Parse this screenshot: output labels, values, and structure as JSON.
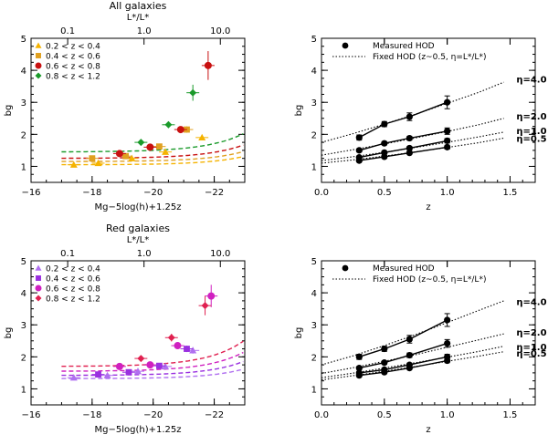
{
  "chart_data": [
    {
      "type": "scatter",
      "title": "All galaxies",
      "top_axis_label": "L*/L*",
      "top_ticks": [
        {
          "label": "0.1",
          "at": -17.2
        },
        {
          "label": "1.0",
          "at": -19.7
        },
        {
          "label": "10.0",
          "at": -22.2
        }
      ],
      "xlabel": "Mg−5log(h)+1.25z",
      "ylabel": "bg",
      "xlim": [
        -16,
        -23
      ],
      "ylim": [
        0.5,
        5
      ],
      "xticks": [
        -16,
        -18,
        -20,
        -22
      ],
      "yticks": [
        1,
        2,
        3,
        4,
        5
      ],
      "curve_xstart": -17.0,
      "legend_position": "top-left",
      "series": [
        {
          "name": "0.2 < z < 0.4",
          "color": "#f5b300",
          "marker": "triangle",
          "curve": {
            "base": 1.05,
            "amp": 0.0007,
            "scale": 0.85
          },
          "points": [
            {
              "x": -17.4,
              "y": 1.05,
              "err": 0.06
            },
            {
              "x": -18.2,
              "y": 1.1,
              "err": 0.06
            },
            {
              "x": -19.3,
              "y": 1.25,
              "err": 0.06
            },
            {
              "x": -20.4,
              "y": 1.45,
              "err": 0.07
            },
            {
              "x": -21.6,
              "y": 1.9,
              "err": 0.09
            }
          ]
        },
        {
          "name": "0.4 < z < 0.6",
          "color": "#e0a020",
          "marker": "square",
          "curve": {
            "base": 1.15,
            "amp": 0.0009,
            "scale": 0.84
          },
          "points": [
            {
              "x": -18.0,
              "y": 1.25,
              "err": 0.06
            },
            {
              "x": -19.1,
              "y": 1.32,
              "err": 0.06
            },
            {
              "x": -20.2,
              "y": 1.62,
              "err": 0.08
            },
            {
              "x": -21.1,
              "y": 2.15,
              "err": 0.1
            }
          ]
        },
        {
          "name": "0.6 < z < 0.8",
          "color": "#c81010",
          "marker": "circle",
          "curve": {
            "base": 1.25,
            "amp": 0.0013,
            "scale": 0.83
          },
          "points": [
            {
              "x": -18.9,
              "y": 1.4,
              "err": 0.06
            },
            {
              "x": -19.9,
              "y": 1.6,
              "err": 0.07
            },
            {
              "x": -20.9,
              "y": 2.15,
              "err": 0.1
            },
            {
              "x": -21.8,
              "y": 4.15,
              "err": 0.45
            }
          ]
        },
        {
          "name": "0.8 < z < 1.2",
          "color": "#1a9a2a",
          "marker": "diamond",
          "curve": {
            "base": 1.45,
            "amp": 0.0019,
            "scale": 0.82
          },
          "points": [
            {
              "x": -19.6,
              "y": 1.75,
              "err": 0.07
            },
            {
              "x": -20.5,
              "y": 2.3,
              "err": 0.1
            },
            {
              "x": -21.3,
              "y": 3.3,
              "err": 0.25
            }
          ]
        }
      ]
    },
    {
      "type": "line",
      "title": "",
      "xlabel": "z",
      "ylabel": "bg",
      "xlim": [
        0,
        1.7
      ],
      "ylim": [
        0.5,
        5
      ],
      "xticks": [
        0.0,
        0.5,
        1.0,
        1.5
      ],
      "yticks": [
        1,
        2,
        3,
        4,
        5
      ],
      "legend_position": "top-left",
      "legend": {
        "measured": "Measured HOD",
        "fixed": "Fixed HOD (z~0.5, η=L*/L*)"
      },
      "fixed_x": [
        0.0,
        0.25,
        0.5,
        0.75,
        1.0,
        1.25,
        1.45
      ],
      "eta_series": [
        {
          "name": "η=4.0",
          "measured_x": [
            0.3,
            0.5,
            0.7,
            1.0
          ],
          "measured_y": [
            1.9,
            2.32,
            2.55,
            3.0
          ],
          "err": [
            0.08,
            0.08,
            0.12,
            0.2
          ],
          "fixed_y": [
            1.75,
            2.02,
            2.32,
            2.63,
            2.97,
            3.31,
            3.63
          ],
          "label_y": 3.7
        },
        {
          "name": "η=2.0",
          "measured_x": [
            0.3,
            0.5,
            0.7,
            1.0
          ],
          "measured_y": [
            1.5,
            1.72,
            1.88,
            2.1
          ],
          "err": [
            0.05,
            0.05,
            0.06,
            0.1
          ],
          "fixed_y": [
            1.35,
            1.52,
            1.7,
            1.89,
            2.09,
            2.3,
            2.5
          ],
          "label_y": 2.55
        },
        {
          "name": "η=1.0",
          "measured_x": [
            0.3,
            0.5,
            0.7,
            1.0
          ],
          "measured_y": [
            1.28,
            1.43,
            1.57,
            1.8
          ],
          "err": [
            0.04,
            0.04,
            0.05,
            0.07
          ],
          "fixed_y": [
            1.18,
            1.3,
            1.44,
            1.59,
            1.75,
            1.92,
            2.07
          ],
          "label_y": 2.1
        },
        {
          "name": "η=0.5",
          "measured_x": [
            0.3,
            0.5,
            0.7,
            1.0
          ],
          "measured_y": [
            1.18,
            1.3,
            1.42,
            1.6
          ],
          "err": [
            0.04,
            0.04,
            0.04,
            0.06
          ],
          "fixed_y": [
            1.1,
            1.2,
            1.32,
            1.45,
            1.59,
            1.74,
            1.88
          ],
          "label_y": 1.85
        }
      ]
    },
    {
      "type": "scatter",
      "title": "Red galaxies",
      "top_axis_label": "L*/L*",
      "top_ticks": [
        {
          "label": "0.1",
          "at": -17.2
        },
        {
          "label": "1.0",
          "at": -19.7
        },
        {
          "label": "10.0",
          "at": -22.2
        }
      ],
      "xlabel": "Mg−5log(h)+1.25z",
      "ylabel": "bg",
      "xlim": [
        -16,
        -23
      ],
      "ylim": [
        0.5,
        5
      ],
      "xticks": [
        -16,
        -18,
        -20,
        -22
      ],
      "yticks": [
        1,
        2,
        3,
        4,
        5
      ],
      "curve_xstart": -17.0,
      "legend_position": "top-left",
      "series": [
        {
          "name": "0.2 < z < 0.4",
          "color": "#b070f0",
          "marker": "triangle",
          "curve": {
            "base": 1.32,
            "amp": 0.0007,
            "scale": 0.87
          },
          "points": [
            {
              "x": -17.4,
              "y": 1.35,
              "err": 0.06
            },
            {
              "x": -18.5,
              "y": 1.42,
              "err": 0.06
            },
            {
              "x": -19.5,
              "y": 1.55,
              "err": 0.07
            },
            {
              "x": -20.4,
              "y": 1.7,
              "err": 0.07
            },
            {
              "x": -21.3,
              "y": 2.2,
              "err": 0.1
            }
          ]
        },
        {
          "name": "0.4 < z < 0.6",
          "color": "#9a30e0",
          "marker": "square",
          "curve": {
            "base": 1.42,
            "amp": 0.0011,
            "scale": 0.86
          },
          "points": [
            {
              "x": -18.2,
              "y": 1.45,
              "err": 0.06
            },
            {
              "x": -19.2,
              "y": 1.52,
              "err": 0.06
            },
            {
              "x": -20.2,
              "y": 1.72,
              "err": 0.07
            },
            {
              "x": -21.1,
              "y": 2.25,
              "err": 0.1
            }
          ]
        },
        {
          "name": "0.6 < z < 0.8",
          "color": "#d020c0",
          "marker": "circle",
          "curve": {
            "base": 1.55,
            "amp": 0.0016,
            "scale": 0.85
          },
          "points": [
            {
              "x": -18.9,
              "y": 1.7,
              "err": 0.06
            },
            {
              "x": -19.9,
              "y": 1.75,
              "err": 0.07
            },
            {
              "x": -20.8,
              "y": 2.35,
              "err": 0.1
            },
            {
              "x": -21.9,
              "y": 3.9,
              "err": 0.35
            }
          ]
        },
        {
          "name": "0.8 < z < 1.2",
          "color": "#e02050",
          "marker": "diamond",
          "curve": {
            "base": 1.7,
            "amp": 0.0023,
            "scale": 0.84
          },
          "points": [
            {
              "x": -19.6,
              "y": 1.95,
              "err": 0.07
            },
            {
              "x": -20.6,
              "y": 2.6,
              "err": 0.12
            },
            {
              "x": -21.7,
              "y": 3.6,
              "err": 0.3
            }
          ]
        }
      ]
    },
    {
      "type": "line",
      "title": "",
      "xlabel": "z",
      "ylabel": "bg",
      "xlim": [
        0,
        1.7
      ],
      "ylim": [
        0.5,
        5
      ],
      "xticks": [
        0.0,
        0.5,
        1.0,
        1.5
      ],
      "yticks": [
        1,
        2,
        3,
        4,
        5
      ],
      "legend_position": "top-left",
      "legend": {
        "measured": "Measured HOD",
        "fixed": "Fixed HOD (z~0.5, η=L*/L*)"
      },
      "fixed_x": [
        0.0,
        0.25,
        0.5,
        0.75,
        1.0,
        1.25,
        1.45
      ],
      "eta_series": [
        {
          "name": "η=4.0",
          "measured_x": [
            0.3,
            0.5,
            0.7,
            1.0
          ],
          "measured_y": [
            2.0,
            2.25,
            2.55,
            3.15
          ],
          "err": [
            0.08,
            0.08,
            0.12,
            0.2
          ],
          "fixed_y": [
            1.75,
            2.03,
            2.35,
            2.7,
            3.07,
            3.45,
            3.75
          ],
          "label_y": 3.7
        },
        {
          "name": "η=2.0",
          "measured_x": [
            0.3,
            0.5,
            0.7,
            1.0
          ],
          "measured_y": [
            1.65,
            1.82,
            2.05,
            2.42
          ],
          "err": [
            0.05,
            0.05,
            0.07,
            0.12
          ],
          "fixed_y": [
            1.48,
            1.66,
            1.86,
            2.07,
            2.3,
            2.53,
            2.72
          ],
          "label_y": 2.75
        },
        {
          "name": "η=1.0",
          "measured_x": [
            0.3,
            0.5,
            0.7,
            1.0
          ],
          "measured_y": [
            1.5,
            1.6,
            1.75,
            2.0
          ],
          "err": [
            0.04,
            0.04,
            0.05,
            0.08
          ],
          "fixed_y": [
            1.35,
            1.49,
            1.65,
            1.82,
            1.99,
            2.17,
            2.33
          ],
          "label_y": 2.3
        },
        {
          "name": "η=0.5",
          "measured_x": [
            0.3,
            0.5,
            0.7,
            1.0
          ],
          "measured_y": [
            1.42,
            1.52,
            1.65,
            1.88
          ],
          "err": [
            0.04,
            0.04,
            0.04,
            0.06
          ],
          "fixed_y": [
            1.28,
            1.41,
            1.55,
            1.7,
            1.86,
            2.02,
            2.16
          ],
          "label_y": 2.1
        }
      ]
    }
  ]
}
